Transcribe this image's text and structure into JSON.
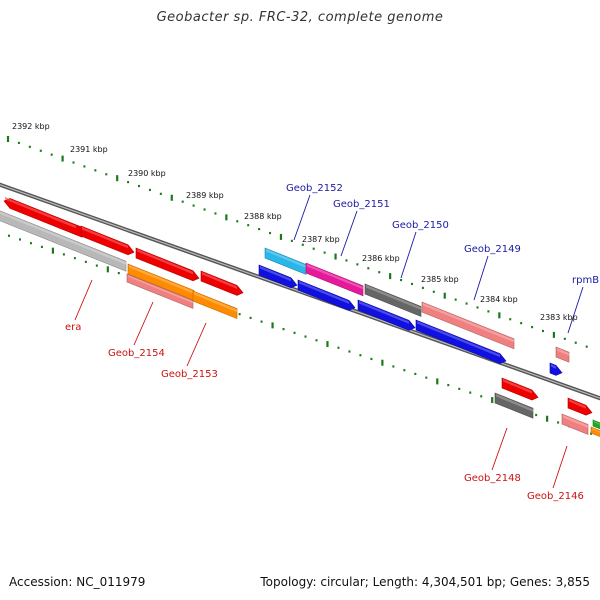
{
  "title": "Geobacter sp. FRC-32, complete genome",
  "footer": {
    "accession": "Accession: NC_011979",
    "topology": "Topology: circular; Length: 4,304,501 bp; Genes: 3,855"
  },
  "scale_labels": [
    "2392 kbp",
    "2391 kbp",
    "2390 kbp",
    "2389 kbp",
    "2388 kbp",
    "2387 kbp",
    "2386 kbp",
    "2385 kbp",
    "2384 kbp",
    "2383 kbp"
  ],
  "gene_labels": [
    {
      "text": "Geob_2152",
      "color": "#1a1aa6"
    },
    {
      "text": "Geob_2151",
      "color": "#1a1aa6"
    },
    {
      "text": "Geob_2150",
      "color": "#1a1aa6"
    },
    {
      "text": "Geob_2149",
      "color": "#1a1aa6"
    },
    {
      "text": "rpmB",
      "color": "#1a1aa6"
    },
    {
      "text": "era",
      "color": "#cc1111"
    },
    {
      "text": "Geob_2154",
      "color": "#cc1111"
    },
    {
      "text": "Geob_2153",
      "color": "#cc1111"
    },
    {
      "text": "Geob_2148",
      "color": "#cc1111"
    },
    {
      "text": "Geob_2146",
      "color": "#cc1111"
    }
  ],
  "colors": {
    "red": "#ee0000",
    "salmon": "#f08080",
    "grey": "#b8b8b8",
    "darkgrey": "#666666",
    "orange": "#ff8c00",
    "cyan": "#29b6e8",
    "magenta": "#e6199b",
    "blue": "#1010e0",
    "green": "#22aa22",
    "tick": "#1a7a1a"
  }
}
